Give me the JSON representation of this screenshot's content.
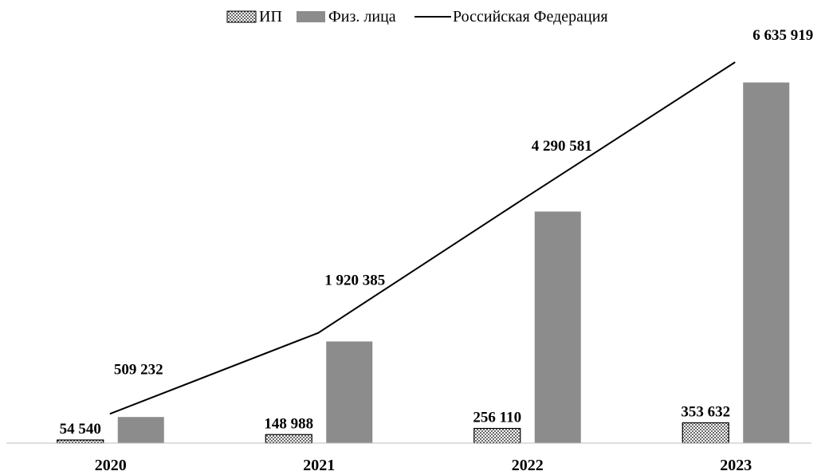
{
  "chart_data": {
    "type": "bar",
    "categories": [
      "2020",
      "2021",
      "2022",
      "2023"
    ],
    "series": [
      {
        "name": "ИП",
        "kind": "bar",
        "pattern": "dotted",
        "values": [
          54540,
          148988,
          256110,
          353632
        ],
        "labels": [
          "54 540",
          "148 988",
          "256 110",
          "353 632"
        ]
      },
      {
        "name": "Физ. лица",
        "kind": "bar",
        "color": "#8c8c8c",
        "values": [
          455000,
          1771000,
          4034000,
          6282000
        ]
      },
      {
        "name": "Российская Федерация",
        "kind": "line",
        "color": "#000000",
        "values": [
          509232,
          1920385,
          4290581,
          6635919
        ],
        "labels": [
          "509 232",
          "1 920 385",
          "4 290 581",
          "6 635 919"
        ]
      }
    ],
    "ylim": [
      0,
      6635919
    ],
    "grid": false,
    "legend_position": "top-center",
    "title": "",
    "xlabel": "",
    "ylabel": ""
  }
}
